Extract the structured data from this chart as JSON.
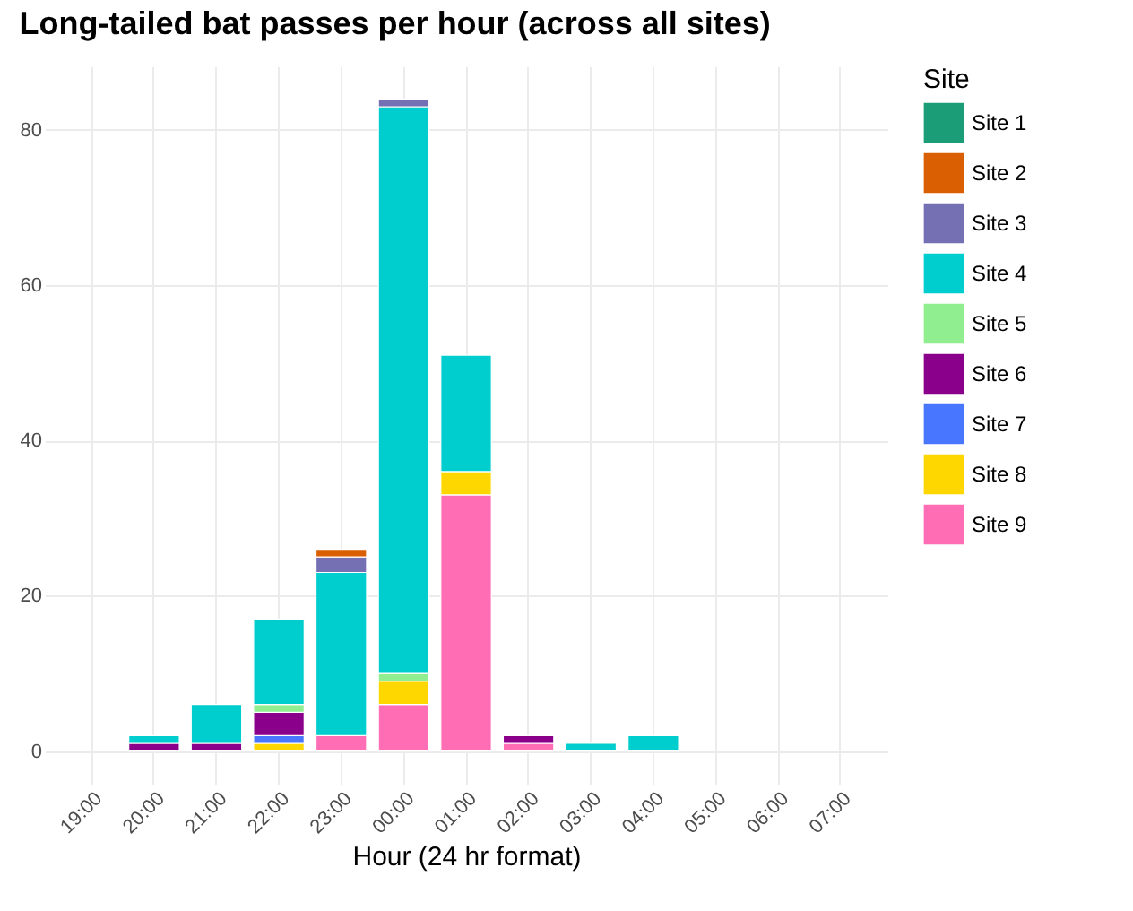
{
  "chart_data": {
    "type": "bar",
    "title": "Long-tailed bat passes per hour (across all sites)",
    "xlabel": "Hour (24 hr format)",
    "legend_title": "Site",
    "categories": [
      "19:00",
      "20:00",
      "21:00",
      "22:00",
      "23:00",
      "00:00",
      "01:00",
      "02:00",
      "03:00",
      "04:00",
      "05:00",
      "06:00",
      "07:00"
    ],
    "stacked": true,
    "series": [
      {
        "name": "Site 9",
        "color": "#ff6eb4",
        "values": [
          null,
          null,
          null,
          null,
          2,
          6,
          33,
          1,
          null,
          null,
          null,
          null,
          null
        ]
      },
      {
        "name": "Site 8",
        "color": "#ffd700",
        "values": [
          null,
          null,
          null,
          1,
          null,
          3,
          3,
          null,
          null,
          null,
          null,
          null,
          null
        ]
      },
      {
        "name": "Site 7",
        "color": "#4876ff",
        "values": [
          null,
          null,
          null,
          1,
          null,
          null,
          null,
          null,
          null,
          null,
          null,
          null,
          null
        ]
      },
      {
        "name": "Site 6",
        "color": "#8b008b",
        "values": [
          null,
          1,
          1,
          3,
          null,
          null,
          null,
          1,
          null,
          null,
          null,
          null,
          null
        ]
      },
      {
        "name": "Site 5",
        "color": "#90ee90",
        "values": [
          null,
          null,
          null,
          1,
          null,
          1,
          null,
          null,
          null,
          null,
          null,
          null,
          null
        ]
      },
      {
        "name": "Site 4",
        "color": "#00cdcd",
        "values": [
          null,
          1,
          5,
          11,
          21,
          73,
          15,
          null,
          1,
          2,
          null,
          null,
          null
        ]
      },
      {
        "name": "Site 3",
        "color": "#7570b3",
        "values": [
          null,
          null,
          null,
          null,
          2,
          1,
          null,
          null,
          null,
          null,
          null,
          null,
          null
        ]
      },
      {
        "name": "Site 2",
        "color": "#d95f02",
        "values": [
          null,
          null,
          null,
          null,
          1,
          null,
          null,
          null,
          null,
          null,
          null,
          null,
          null
        ]
      },
      {
        "name": "Site 1",
        "color": "#1b9e77",
        "values": [
          null,
          null,
          null,
          null,
          null,
          null,
          null,
          null,
          null,
          null,
          null,
          null,
          null
        ]
      }
    ],
    "ylim": [
      -4.2,
      88.2
    ],
    "yticks": [
      0,
      20,
      40,
      60,
      80
    ],
    "grid": true,
    "legend": "right"
  }
}
